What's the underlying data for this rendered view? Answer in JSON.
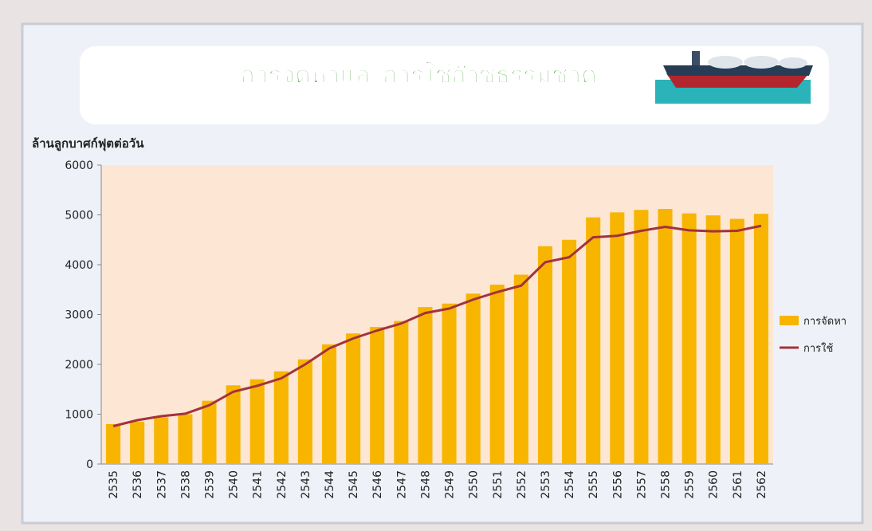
{
  "chart_data": {
    "type": "bar",
    "title": "การจัดหาและการใช้ก๊าซธรรมชาติ",
    "y_label": "ล้านลูกบาศก์ฟุตต่อวัน",
    "categories": [
      "2535",
      "2536",
      "2537",
      "2538",
      "2539",
      "2540",
      "2541",
      "2542",
      "2543",
      "2544",
      "2545",
      "2546",
      "2547",
      "2548",
      "2549",
      "2550",
      "2551",
      "2552",
      "2553",
      "2554",
      "2555",
      "2556",
      "2557",
      "2558",
      "2559",
      "2560",
      "2561",
      "2562"
    ],
    "series": [
      {
        "name": "การจัดหา",
        "type": "bar",
        "color": "#f7b500",
        "values": [
          800,
          850,
          940,
          1000,
          1270,
          1580,
          1700,
          1860,
          2100,
          2400,
          2620,
          2750,
          2870,
          3150,
          3220,
          3420,
          3600,
          3800,
          4370,
          4500,
          4950,
          5050,
          5100,
          5120,
          5030,
          4990,
          4920,
          5020
        ]
      },
      {
        "name": "การใช้",
        "type": "line",
        "color": "#a3323c",
        "values": [
          760,
          880,
          960,
          1010,
          1180,
          1450,
          1570,
          1720,
          2000,
          2320,
          2520,
          2680,
          2820,
          3030,
          3120,
          3300,
          3450,
          3580,
          4050,
          4150,
          4550,
          4580,
          4680,
          4760,
          4690,
          4670,
          4680,
          4780
        ]
      }
    ],
    "ylim": [
      0,
      6000
    ],
    "yticks": [
      0,
      1000,
      2000,
      3000,
      4000,
      5000,
      6000
    ],
    "legend": "right"
  }
}
